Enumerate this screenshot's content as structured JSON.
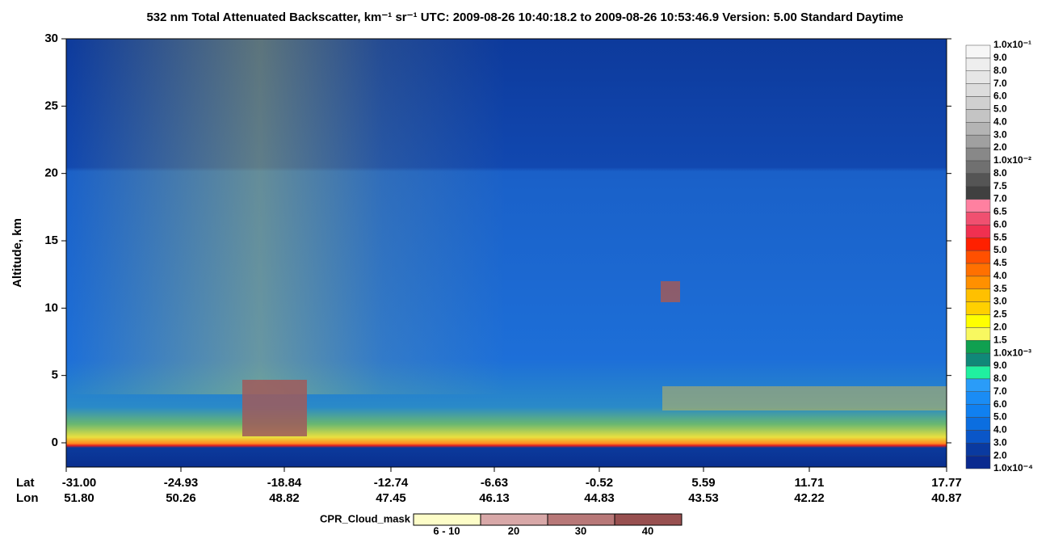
{
  "chart_data": {
    "type": "heatmap",
    "title": "532 nm Total Attenuated Backscatter, km⁻¹ sr⁻¹    UTC:  2009-08-26 10:40:18.2  to  2009-08-26 10:53:46.9    Version: 5.00  Standard  Daytime",
    "y_label": "Altitude, km",
    "ylim": [
      -1.8,
      30
    ],
    "yticks": [
      0,
      5,
      10,
      15,
      20,
      25,
      30
    ],
    "x_row_labels": [
      "Lat",
      "Lon"
    ],
    "lat": [
      "-31.00",
      "-24.93",
      "-18.84",
      "-12.74",
      "-6.63",
      "-0.52",
      "5.59",
      "11.71",
      "17.77"
    ],
    "lon": [
      "51.80",
      "50.26",
      "48.82",
      "47.45",
      "46.13",
      "44.83",
      "43.53",
      "42.22",
      "40.87"
    ],
    "colorbar": {
      "labels": [
        "1.0x10⁻⁴",
        "2.0",
        "3.0",
        "4.0",
        "5.0",
        "6.0",
        "7.0",
        "8.0",
        "9.0",
        "1.0x10⁻³",
        "1.5",
        "2.0",
        "2.5",
        "3.0",
        "3.5",
        "4.0",
        "4.5",
        "5.0",
        "5.5",
        "6.0",
        "6.5",
        "7.0",
        "7.5",
        "8.0",
        "1.0x10⁻²",
        "2.0",
        "3.0",
        "4.0",
        "5.0",
        "6.0",
        "7.0",
        "8.0",
        "9.0",
        "1.0x10⁻¹"
      ],
      "colors": [
        "#0a2a8f",
        "#0a3aa0",
        "#0a56c8",
        "#0b6ee0",
        "#1080f0",
        "#1a8cf5",
        "#2a9cf8",
        "#20f0a0",
        "#108878",
        "#10a050",
        "#f8f860",
        "#ffff00",
        "#ffd000",
        "#ffc000",
        "#ff9000",
        "#ff7000",
        "#ff5000",
        "#ff2000",
        "#f03050",
        "#f05070",
        "#ff80a0",
        "#404040",
        "#555555",
        "#707070",
        "#888888",
        "#a0a0a0",
        "#b4b4b4",
        "#c4c4c4",
        "#d0d0d0",
        "#dcdcdc",
        "#e6e6e6",
        "#eeeeee",
        "#f6f6f6"
      ]
    },
    "cloud_mask": {
      "title": "CPR_Cloud_mask",
      "labels": [
        "6 - 10",
        "20",
        "30",
        "40"
      ],
      "colors": [
        "#fdfdc8",
        "#d8a8a8",
        "#b87878",
        "#985050"
      ]
    }
  }
}
